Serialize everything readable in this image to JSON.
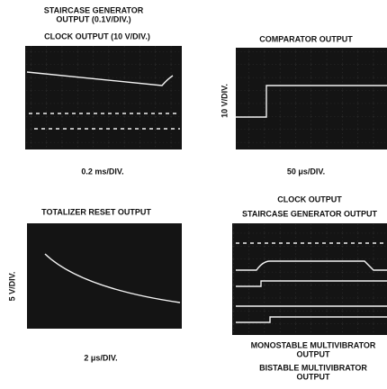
{
  "panels": [
    {
      "top_labels": [
        "STAIRCASE GENERATOR",
        "OUTPUT (0.1V/DIV.)",
        "CLOCK OUTPUT (10 V/DIV.)"
      ],
      "caption": "0.2 ms/DIV."
    },
    {
      "top_labels": [
        "COMPARATOR OUTPUT"
      ],
      "side_label": "10 V/DIV.",
      "caption": "50 μs/DIV."
    },
    {
      "top_labels": [
        "TOTALIZER RESET OUTPUT"
      ],
      "side_label": "5 V/DIV.",
      "caption": "2 μs/DIV."
    },
    {
      "top_labels": [
        "CLOCK OUTPUT",
        "STAIRCASE GENERATOR OUTPUT"
      ],
      "bottom_labels": [
        "MONOSTABLE MULTIVIBRATOR",
        "OUTPUT",
        "BISTABLE MULTIVIBRATOR",
        "OUTPUT"
      ]
    }
  ]
}
